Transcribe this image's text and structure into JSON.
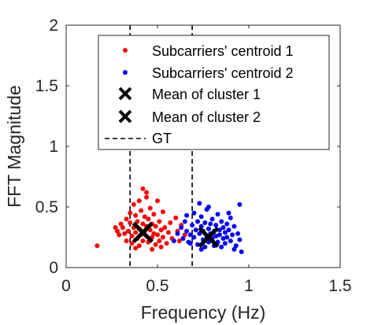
{
  "chart_data": {
    "type": "scatter",
    "xlabel": "Frequency (Hz)",
    "ylabel": "FFT Magnitude",
    "xlim": [
      0,
      1.5
    ],
    "ylim": [
      0,
      2
    ],
    "xticks": [
      "0",
      "0.5",
      "1",
      "1.5"
    ],
    "yticks": [
      "0",
      "0.5",
      "1",
      "1.5",
      "2"
    ],
    "xtick_values": [
      0,
      0.5,
      1,
      1.5
    ],
    "ytick_values": [
      0,
      0.5,
      1,
      1.5,
      2
    ],
    "grid": false,
    "legend_placement": "top-right",
    "series": [
      {
        "name": "Subcarriers' centroid 1",
        "marker": "dot",
        "color": "#ff0000",
        "points": [
          [
            0.17,
            0.18
          ],
          [
            0.27,
            0.33
          ],
          [
            0.28,
            0.3
          ],
          [
            0.29,
            0.27
          ],
          [
            0.3,
            0.36
          ],
          [
            0.31,
            0.33
          ],
          [
            0.32,
            0.28
          ],
          [
            0.33,
            0.4
          ],
          [
            0.33,
            0.22
          ],
          [
            0.34,
            0.3
          ],
          [
            0.35,
            0.45
          ],
          [
            0.35,
            0.37
          ],
          [
            0.36,
            0.26
          ],
          [
            0.36,
            0.2
          ],
          [
            0.37,
            0.33
          ],
          [
            0.37,
            0.52
          ],
          [
            0.38,
            0.29
          ],
          [
            0.38,
            0.43
          ],
          [
            0.39,
            0.24
          ],
          [
            0.39,
            0.38
          ],
          [
            0.4,
            0.55
          ],
          [
            0.4,
            0.32
          ],
          [
            0.4,
            0.18
          ],
          [
            0.41,
            0.27
          ],
          [
            0.41,
            0.47
          ],
          [
            0.42,
            0.65
          ],
          [
            0.42,
            0.36
          ],
          [
            0.42,
            0.22
          ],
          [
            0.43,
            0.3
          ],
          [
            0.43,
            0.42
          ],
          [
            0.44,
            0.58
          ],
          [
            0.44,
            0.26
          ],
          [
            0.44,
            0.34
          ],
          [
            0.45,
            0.4
          ],
          [
            0.45,
            0.21
          ],
          [
            0.46,
            0.31
          ],
          [
            0.46,
            0.49
          ],
          [
            0.47,
            0.36
          ],
          [
            0.47,
            0.25
          ],
          [
            0.48,
            0.44
          ],
          [
            0.48,
            0.28
          ],
          [
            0.49,
            0.19
          ],
          [
            0.49,
            0.34
          ],
          [
            0.5,
            0.55
          ],
          [
            0.5,
            0.27
          ],
          [
            0.51,
            0.38
          ],
          [
            0.51,
            0.22
          ],
          [
            0.52,
            0.31
          ],
          [
            0.53,
            0.46
          ],
          [
            0.53,
            0.25
          ],
          [
            0.54,
            0.33
          ],
          [
            0.55,
            0.2
          ],
          [
            0.56,
            0.29
          ],
          [
            0.57,
            0.37
          ],
          [
            0.58,
            0.24
          ],
          [
            0.6,
            0.41
          ],
          [
            0.61,
            0.3
          ],
          [
            0.62,
            0.22
          ],
          [
            0.63,
            0.35
          ],
          [
            0.65,
            0.27
          ],
          [
            0.52,
            0.17
          ],
          [
            0.47,
            0.15
          ],
          [
            0.38,
            0.16
          ],
          [
            0.44,
            0.62
          ]
        ]
      },
      {
        "name": "Subcarriers' centroid 2",
        "marker": "dot",
        "color": "#0000ff",
        "points": [
          [
            0.59,
            0.22
          ],
          [
            0.61,
            0.28
          ],
          [
            0.63,
            0.33
          ],
          [
            0.64,
            0.24
          ],
          [
            0.65,
            0.38
          ],
          [
            0.66,
            0.3
          ],
          [
            0.67,
            0.21
          ],
          [
            0.68,
            0.27
          ],
          [
            0.69,
            0.35
          ],
          [
            0.7,
            0.45
          ],
          [
            0.7,
            0.25
          ],
          [
            0.71,
            0.31
          ],
          [
            0.72,
            0.38
          ],
          [
            0.72,
            0.19
          ],
          [
            0.73,
            0.28
          ],
          [
            0.74,
            0.34
          ],
          [
            0.74,
            0.42
          ],
          [
            0.75,
            0.23
          ],
          [
            0.75,
            0.3
          ],
          [
            0.76,
            0.37
          ],
          [
            0.76,
            0.17
          ],
          [
            0.77,
            0.26
          ],
          [
            0.77,
            0.48
          ],
          [
            0.78,
            0.32
          ],
          [
            0.78,
            0.21
          ],
          [
            0.79,
            0.36
          ],
          [
            0.79,
            0.28
          ],
          [
            0.8,
            0.4
          ],
          [
            0.8,
            0.24
          ],
          [
            0.81,
            0.3
          ],
          [
            0.81,
            0.18
          ],
          [
            0.82,
            0.35
          ],
          [
            0.82,
            0.26
          ],
          [
            0.83,
            0.44
          ],
          [
            0.83,
            0.21
          ],
          [
            0.84,
            0.31
          ],
          [
            0.84,
            0.27
          ],
          [
            0.85,
            0.38
          ],
          [
            0.85,
            0.17
          ],
          [
            0.86,
            0.24
          ],
          [
            0.86,
            0.33
          ],
          [
            0.87,
            0.29
          ],
          [
            0.87,
            0.2
          ],
          [
            0.88,
            0.36
          ],
          [
            0.88,
            0.25
          ],
          [
            0.89,
            0.31
          ],
          [
            0.9,
            0.22
          ],
          [
            0.9,
            0.41
          ],
          [
            0.91,
            0.27
          ],
          [
            0.92,
            0.34
          ],
          [
            0.93,
            0.18
          ],
          [
            0.94,
            0.28
          ],
          [
            0.95,
            0.23
          ],
          [
            0.96,
            0.13
          ],
          [
            0.92,
            0.15
          ],
          [
            0.95,
            0.52
          ],
          [
            0.73,
            0.53
          ],
          [
            0.78,
            0.5
          ],
          [
            0.66,
            0.43
          ],
          [
            0.89,
            0.45
          ],
          [
            0.68,
            0.2
          ],
          [
            0.74,
            0.15
          ]
        ]
      },
      {
        "name": "Mean of cluster 1",
        "marker": "x",
        "color": "#000000",
        "points": [
          [
            0.42,
            0.29
          ]
        ]
      },
      {
        "name": "Mean of cluster 2",
        "marker": "x",
        "color": "#000000",
        "points": [
          [
            0.78,
            0.25
          ]
        ]
      },
      {
        "name": "GT",
        "marker": "dashed-vline",
        "color": "#000000",
        "x_values": [
          0.35,
          0.69
        ]
      }
    ]
  }
}
